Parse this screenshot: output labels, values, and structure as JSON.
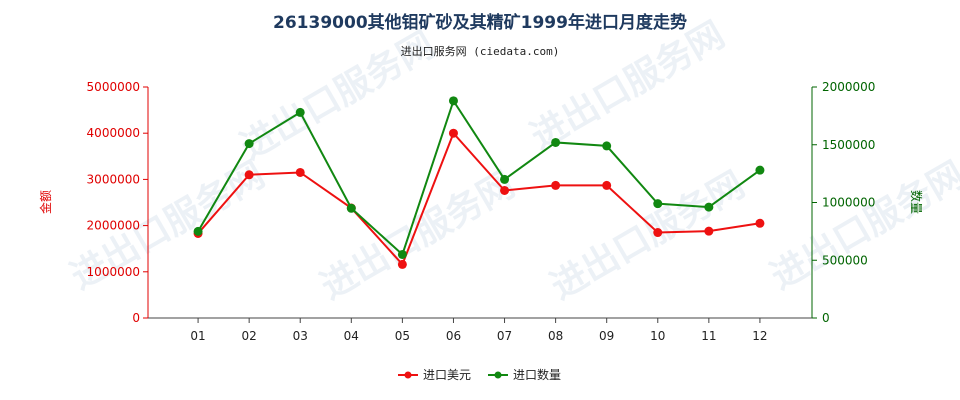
{
  "title": "26139000其他钼矿砂及其精矿1999年进口月度走势",
  "subtitle": "进出口服务网 (ciedata.com)",
  "watermark": "进出口服务网",
  "colors": {
    "left_axis": "#e00000",
    "right_axis": "#006400",
    "series_amount": "#ee1111",
    "series_quantity": "#118811",
    "title": "#1f3a5f"
  },
  "chart_data": {
    "type": "line",
    "title": "26139000其他钼矿砂及其精矿1999年进口月度走势",
    "categories": [
      "01",
      "02",
      "03",
      "04",
      "05",
      "06",
      "07",
      "08",
      "09",
      "10",
      "11",
      "12"
    ],
    "y_left": {
      "label": "金额",
      "range": [
        0,
        5000000
      ],
      "ticks": [
        "0",
        "1000000",
        "2000000",
        "3000000",
        "4000000",
        "5000000"
      ]
    },
    "y_right": {
      "label": "数量",
      "range": [
        0,
        2000000
      ],
      "ticks": [
        "0",
        "500000",
        "1000000",
        "1500000",
        "2000000"
      ]
    },
    "series": [
      {
        "name": "进口美元",
        "axis": "left",
        "color": "#ee1111",
        "values": [
          1830000,
          3100000,
          3150000,
          2380000,
          1160000,
          4000000,
          2760000,
          2870000,
          2870000,
          1850000,
          1880000,
          2050000
        ]
      },
      {
        "name": "进口数量",
        "axis": "right",
        "color": "#118811",
        "values": [
          750000,
          1510000,
          1780000,
          950000,
          550000,
          1880000,
          1200000,
          1520000,
          1490000,
          990000,
          960000,
          1280000
        ]
      }
    ],
    "legend_position": "bottom-center",
    "grid": false
  }
}
